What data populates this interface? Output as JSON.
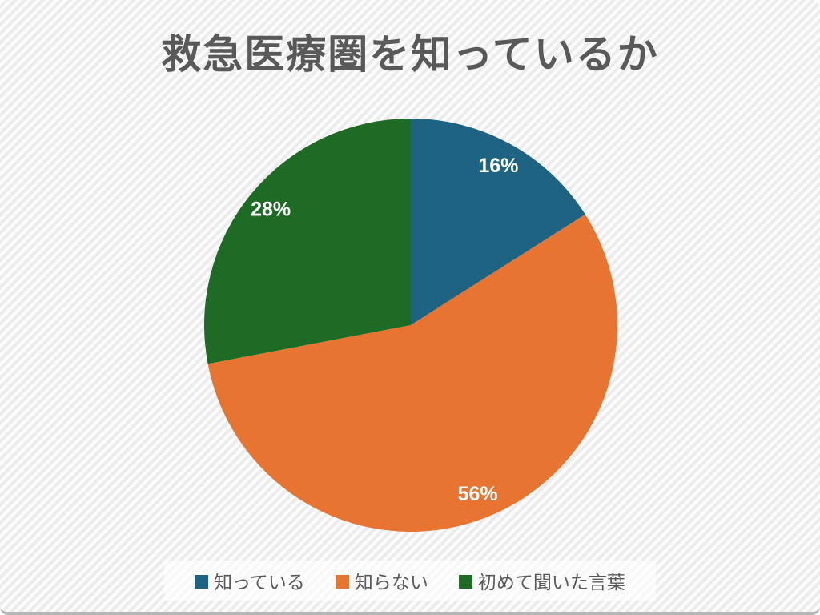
{
  "chart_data": {
    "type": "pie",
    "title": "救急医療圏を知っているか",
    "slices": [
      {
        "label": "知っている",
        "value": 16,
        "data_label": "16%",
        "color": "#1E6382"
      },
      {
        "label": "知らない",
        "value": 56,
        "data_label": "56%",
        "color": "#E87431"
      },
      {
        "label": "初めて聞いた言葉",
        "value": 28,
        "data_label": "28%",
        "color": "#1E6B26"
      }
    ],
    "start_angle": "top",
    "direction": "clockwise",
    "legend_position": "bottom",
    "data_label_color": "#FFFFFF",
    "title_color": "#595959",
    "legend_text_color": "#595959",
    "label_radius_ratio": 0.88
  }
}
